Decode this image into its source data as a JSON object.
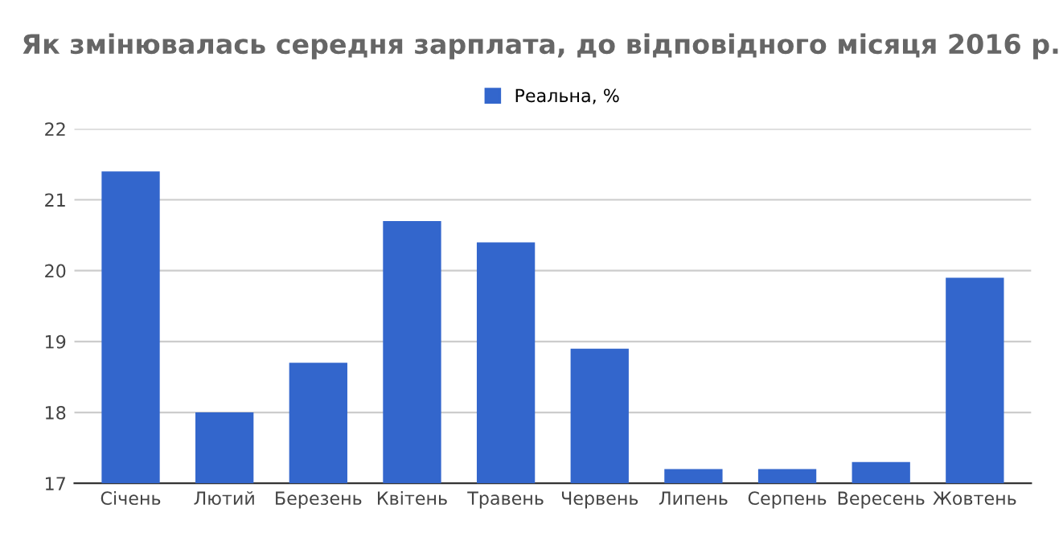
{
  "chart_data": {
    "type": "bar",
    "title": "Як змінювалась середня зарплата, до відповідного місяця 2016 р.",
    "categories": [
      "Січень",
      "Лютий",
      "Березень",
      "Квітень",
      "Травень",
      "Червень",
      "Липень",
      "Серпень",
      "Вересень",
      "Жовтень"
    ],
    "series": [
      {
        "name": "Реальна, %",
        "color": "#3366cc",
        "values": [
          21.4,
          18.0,
          18.7,
          20.7,
          20.4,
          18.9,
          17.2,
          17.2,
          17.3,
          19.9
        ]
      }
    ],
    "ylim": [
      17,
      22
    ],
    "yticks": [
      17,
      18,
      19,
      20,
      21,
      22
    ],
    "grid": "y",
    "legend": "top"
  }
}
